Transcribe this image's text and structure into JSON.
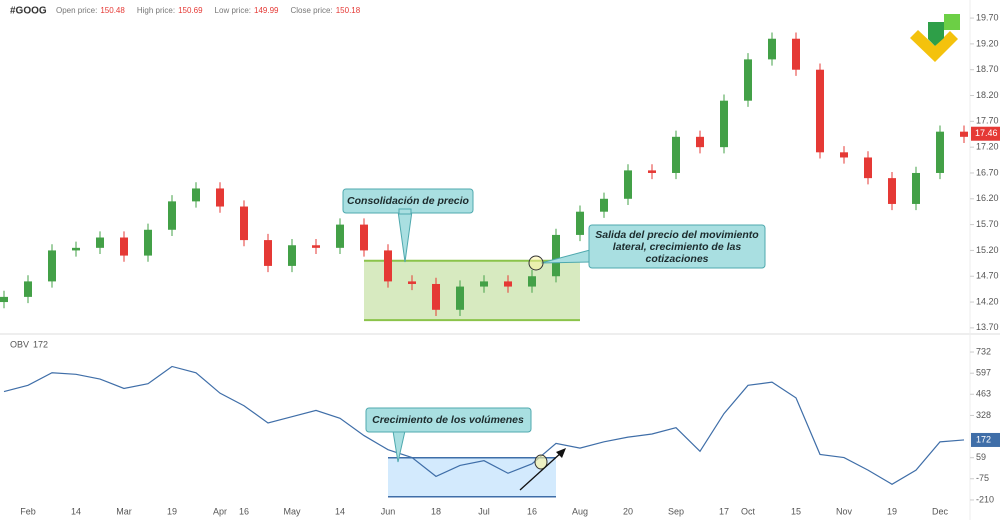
{
  "chart_data": {
    "type": "candlestick",
    "header": {
      "symbol": "#GOOG",
      "fields": [
        {
          "label": "Open price:",
          "value": 150.48
        },
        {
          "label": "High price:",
          "value": 150.69
        },
        {
          "label": "Low price:",
          "value": 149.99
        },
        {
          "label": "Close price:",
          "value": 150.18
        }
      ]
    },
    "categories": [
      null,
      "Feb",
      null,
      "14",
      null,
      "Mar",
      null,
      "19",
      null,
      "Apr",
      "16",
      null,
      "May",
      null,
      "14",
      null,
      "Jun",
      null,
      "18",
      null,
      "Jul",
      null,
      "16",
      null,
      "Aug",
      null,
      "20",
      null,
      "Sep",
      null,
      "17",
      "Oct",
      null,
      "15",
      null,
      "Nov",
      null,
      "19",
      null,
      "Dec",
      null
    ],
    "open": [
      14.2,
      14.3,
      14.6,
      15.2,
      15.25,
      15.45,
      15.1,
      15.6,
      16.15,
      16.4,
      16.05,
      15.4,
      14.9,
      15.3,
      15.25,
      15.7,
      15.2,
      14.6,
      14.55,
      14.05,
      14.5,
      14.6,
      14.5,
      14.7,
      15.5,
      15.95,
      16.2,
      16.75,
      16.7,
      17.4,
      17.2,
      18.1,
      18.9,
      19.3,
      18.7,
      17.1,
      17.0,
      16.6,
      16.1,
      16.7,
      17.5
    ],
    "high": [
      14.42,
      14.72,
      15.32,
      15.37,
      15.57,
      15.57,
      15.72,
      16.27,
      16.52,
      16.52,
      16.17,
      15.52,
      15.42,
      15.42,
      15.82,
      15.82,
      15.32,
      14.72,
      14.67,
      14.62,
      14.72,
      14.72,
      14.82,
      15.62,
      16.07,
      16.32,
      16.87,
      16.87,
      17.52,
      17.52,
      18.22,
      19.02,
      19.42,
      19.42,
      18.82,
      17.22,
      17.12,
      16.72,
      16.82,
      17.62,
      17.62
    ],
    "low": [
      14.08,
      14.18,
      14.48,
      15.08,
      15.13,
      14.98,
      14.98,
      15.48,
      16.03,
      15.93,
      15.28,
      14.78,
      14.78,
      15.13,
      15.13,
      15.08,
      14.48,
      14.43,
      13.93,
      13.93,
      14.38,
      14.38,
      14.38,
      14.58,
      15.38,
      15.83,
      16.08,
      16.58,
      16.58,
      17.08,
      17.08,
      17.98,
      18.78,
      18.58,
      16.98,
      16.88,
      16.48,
      15.98,
      15.98,
      16.58,
      17.28
    ],
    "close": [
      14.3,
      14.6,
      15.2,
      15.25,
      15.45,
      15.1,
      15.6,
      16.15,
      16.4,
      16.05,
      15.4,
      14.9,
      15.3,
      15.25,
      15.7,
      15.2,
      14.6,
      14.55,
      14.05,
      14.5,
      14.6,
      14.5,
      14.7,
      15.5,
      15.95,
      16.2,
      16.75,
      16.7,
      17.4,
      17.2,
      18.1,
      18.9,
      19.3,
      18.7,
      17.1,
      17.0,
      16.6,
      16.1,
      16.7,
      17.5,
      17.4
    ],
    "up_color": "#43a047",
    "down_color": "#e53935",
    "ylim": [
      13.62,
      20.05
    ],
    "yticks": [
      {
        "value": 13.7,
        "label": "13.70"
      },
      {
        "value": 14.2,
        "label": "14.20"
      },
      {
        "value": 14.7,
        "label": "14.70"
      },
      {
        "value": 15.2,
        "label": "15.20"
      },
      {
        "value": 15.7,
        "label": "15.70"
      },
      {
        "value": 16.2,
        "label": "16.20"
      },
      {
        "value": 16.7,
        "label": "16.70"
      },
      {
        "value": 17.2,
        "label": "17.20"
      },
      {
        "value": 17.7,
        "label": "17.70"
      },
      {
        "value": 18.2,
        "label": "18.20"
      },
      {
        "value": 18.7,
        "label": "18.70"
      },
      {
        "value": 19.2,
        "label": "19.20"
      },
      {
        "value": 19.7,
        "label": "19.70"
      }
    ],
    "last_price": 17.46,
    "last_price_color": "#e53935",
    "price_box": {
      "range": [
        13.85,
        15.0
      ],
      "from": 15,
      "to": 24,
      "color": "#8bc34a"
    },
    "obv": {
      "name": "OBV",
      "last": 172,
      "color": "#3f6ea8",
      "values": [
        480,
        520,
        600,
        590,
        560,
        500,
        530,
        640,
        600,
        470,
        390,
        280,
        320,
        360,
        310,
        200,
        110,
        60,
        -60,
        10,
        40,
        -40,
        20,
        150,
        120,
        160,
        190,
        210,
        250,
        100,
        340,
        520,
        540,
        440,
        80,
        60,
        -20,
        -110,
        -20,
        160,
        172
      ],
      "ylim": [
        -274,
        834
      ],
      "yticks": [
        -210,
        -75,
        59,
        328,
        463,
        597,
        732
      ],
      "box": {
        "range": [
          -190,
          59
        ],
        "from": 16,
        "to": 23
      }
    },
    "annotations": {
      "consolidation": "Consolidación de precio",
      "breakout": [
        "Salida del precio del movimiento",
        "lateral, crecimiento de las",
        "cotizaciones"
      ],
      "volume": "Crecimiento de los volúmenes"
    }
  }
}
